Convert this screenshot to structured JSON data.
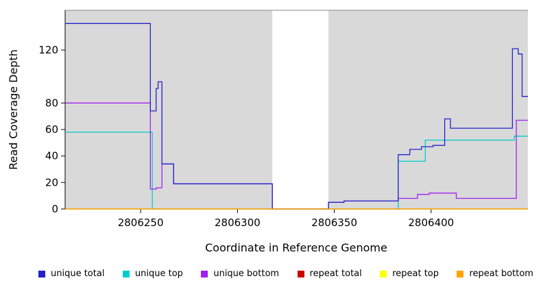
{
  "chart_data": {
    "type": "line",
    "style": "step-after",
    "title": "",
    "xlabel": "Coordinate in Reference Genome",
    "ylabel": "Read Coverage Depth",
    "xlim": [
      2806211,
      2806450
    ],
    "ylim": [
      0,
      150
    ],
    "xticks": [
      2806250,
      2806300,
      2806350,
      2806400
    ],
    "yticks": [
      0,
      20,
      40,
      60,
      80,
      120
    ],
    "plot_background": "#d9d9d9",
    "gap_region": {
      "from": 2806318,
      "to": 2806347
    },
    "legend_position": "bottom",
    "grid": false,
    "draw_order": [
      1,
      2,
      0,
      3,
      4,
      5
    ],
    "series": [
      {
        "name": "unique total",
        "color": "#2222cc",
        "points": [
          [
            2806211,
            140
          ],
          [
            2806255,
            74
          ],
          [
            2806258,
            91
          ],
          [
            2806259,
            96
          ],
          [
            2806261,
            34
          ],
          [
            2806267,
            19
          ],
          [
            2806318,
            0
          ],
          [
            2806347,
            5
          ],
          [
            2806355,
            6
          ],
          [
            2806383,
            41
          ],
          [
            2806389,
            45
          ],
          [
            2806395,
            47
          ],
          [
            2806401,
            48
          ],
          [
            2806407,
            68
          ],
          [
            2806410,
            61
          ],
          [
            2806442,
            121
          ],
          [
            2806445,
            117
          ],
          [
            2806447,
            85
          ]
        ]
      },
      {
        "name": "unique top",
        "color": "#00cccc",
        "points": [
          [
            2806211,
            58
          ],
          [
            2806256,
            0
          ],
          [
            2806383,
            36
          ],
          [
            2806397,
            52
          ],
          [
            2806443,
            55
          ]
        ]
      },
      {
        "name": "unique bottom",
        "color": "#a020f0",
        "points": [
          [
            2806211,
            80
          ],
          [
            2806255,
            15
          ],
          [
            2806258,
            16
          ],
          [
            2806261,
            34
          ],
          [
            2806267,
            19
          ],
          [
            2806318,
            0
          ],
          [
            2806347,
            5
          ],
          [
            2806355,
            6
          ],
          [
            2806383,
            8
          ],
          [
            2806393,
            11
          ],
          [
            2806399,
            12
          ],
          [
            2806413,
            8
          ],
          [
            2806444,
            67
          ]
        ]
      },
      {
        "name": "repeat total",
        "color": "#cc0000",
        "points": [
          [
            2806211,
            0
          ]
        ]
      },
      {
        "name": "repeat top",
        "color": "#ffff00",
        "points": [
          [
            2806211,
            0
          ]
        ]
      },
      {
        "name": "repeat bottom",
        "color": "#ffa500",
        "points": [
          [
            2806211,
            0
          ]
        ]
      }
    ]
  }
}
